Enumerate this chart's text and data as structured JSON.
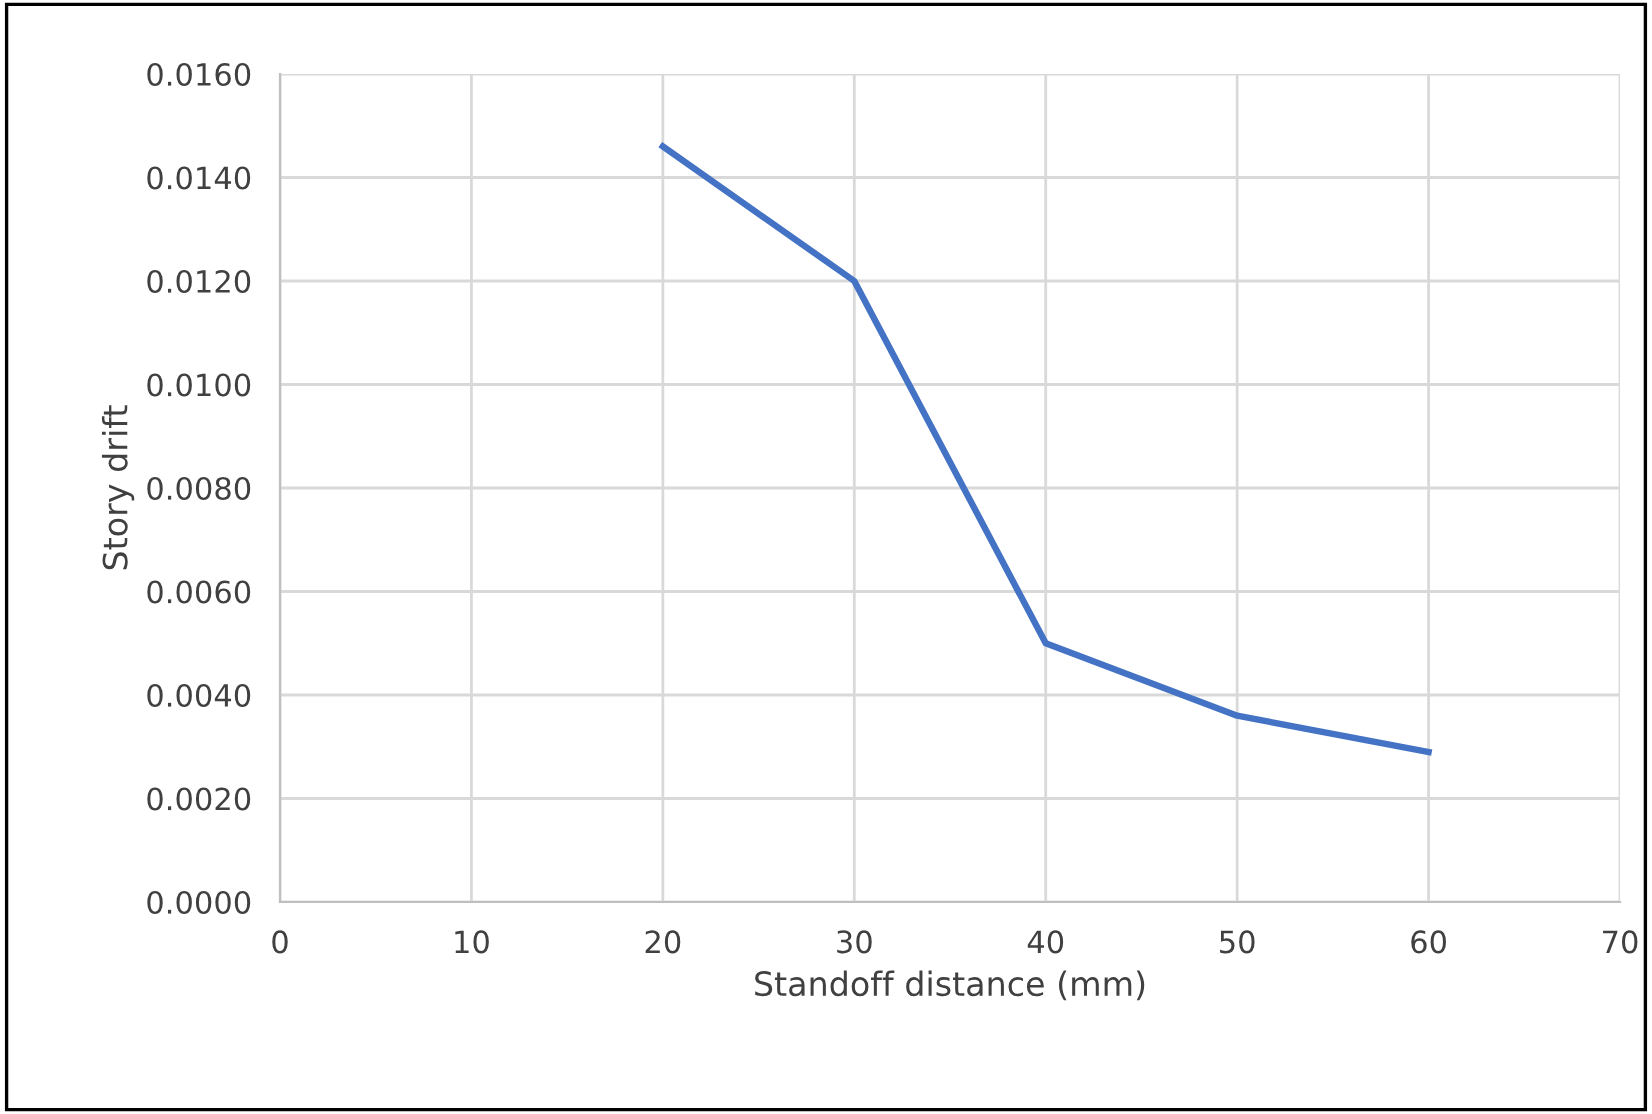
{
  "chart_data": {
    "type": "line",
    "xlabel": "Standoff distance (mm)",
    "ylabel": "Story drift",
    "x": [
      20,
      30,
      40,
      50,
      60
    ],
    "series": [
      {
        "color": "#4472c4",
        "values": [
          0.0146,
          0.012,
          0.005,
          0.0036,
          0.0029
        ]
      }
    ],
    "xlim": [
      0,
      70
    ],
    "xticks": [
      0,
      10,
      20,
      30,
      40,
      50,
      60,
      70
    ],
    "ylim": [
      0,
      0.016
    ],
    "yticks": [
      {
        "value": 0,
        "label": "0.0000"
      },
      {
        "value": 0.002,
        "label": "0.0020"
      },
      {
        "value": 0.004,
        "label": "0.0040"
      },
      {
        "value": 0.006,
        "label": "0.0060"
      },
      {
        "value": 0.008,
        "label": "0.0080"
      },
      {
        "value": 0.01,
        "label": "0.0100"
      },
      {
        "value": 0.012,
        "label": "0.0120"
      },
      {
        "value": 0.014,
        "label": "0.0140"
      },
      {
        "value": 0.016,
        "label": "0.0160"
      }
    ],
    "grid": true,
    "marker": "none",
    "line_style": "solid"
  }
}
